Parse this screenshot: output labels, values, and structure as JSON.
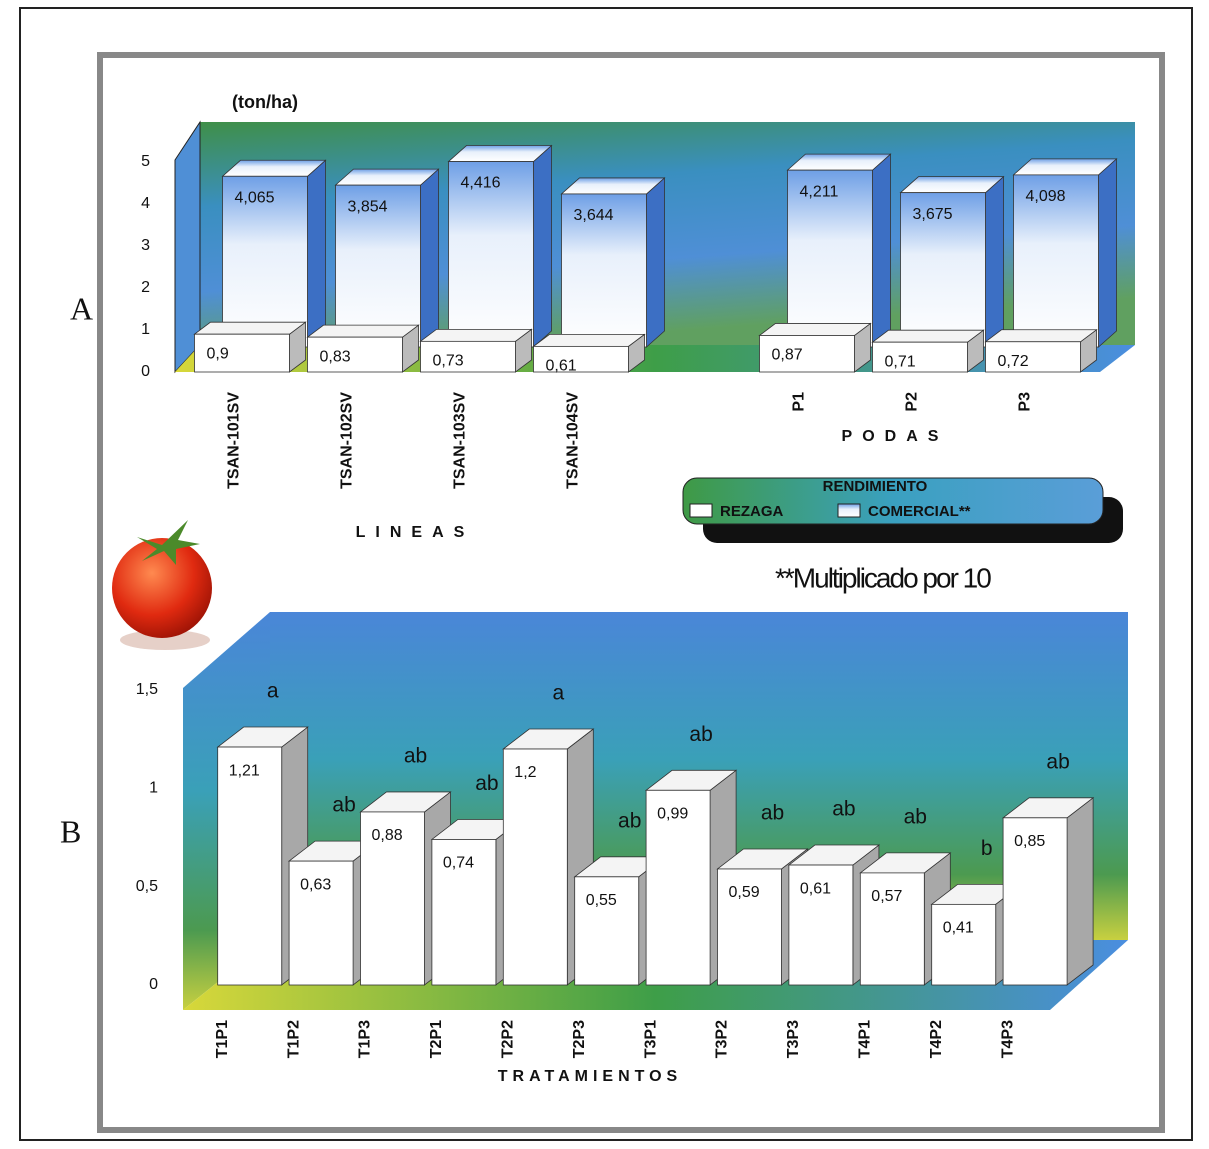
{
  "chart_data": [
    {
      "type": "bar3d",
      "panel": "A",
      "y_label": "(ton/ha)",
      "categories": [
        "TSAN-101SV",
        "TSAN-102SV",
        "TSAN-103SV",
        "TSAN-104SV",
        null,
        "P1",
        "P2",
        "P3"
      ],
      "x_labels": [
        "LINEAS",
        "PODAS"
      ],
      "legend_title": "RENDIMIENTO",
      "note": "**Multiplicado por 10",
      "series": [
        {
          "name": "REZAGA",
          "color": "#ffffff",
          "values": [
            0.9,
            0.83,
            0.73,
            0.61,
            null,
            0.87,
            0.71,
            0.72
          ],
          "value_labels": [
            "0,9",
            "0,83",
            "0,73",
            "0,61",
            null,
            "0,87",
            "0,71",
            "0,72"
          ]
        },
        {
          "name": "COMERCIAL**",
          "color": "#5d8fdc",
          "values": [
            4.065,
            3.854,
            4.416,
            3.644,
            null,
            4.211,
            3.675,
            4.098
          ],
          "value_labels": [
            "4,065",
            "3,854",
            "4,416",
            "3,644",
            null,
            "4,211",
            "3,675",
            "4,098"
          ]
        }
      ],
      "ylim": [
        0,
        5
      ],
      "yticks": [
        0,
        1,
        2,
        3,
        4,
        5
      ]
    },
    {
      "type": "bar3d",
      "panel": "B",
      "x_label": "TRATAMIENTOS",
      "categories": [
        "T1P1",
        "T1P2",
        "T1P3",
        "T2P1",
        "T2P2",
        "T2P3",
        "T3P1",
        "T3P2",
        "T3P3",
        "T4P1",
        "T4P2",
        "T4P3"
      ],
      "series": [
        {
          "color": "#ffffff",
          "values": [
            1.21,
            0.63,
            0.88,
            0.74,
            1.2,
            0.55,
            0.99,
            0.59,
            0.61,
            0.57,
            0.41,
            0.85
          ],
          "value_labels": [
            "1,21",
            "0,63",
            "0,88",
            "0,74",
            "1,2",
            "0,55",
            "0,99",
            "0,59",
            "0,61",
            "0,57",
            "0,41",
            "0,85"
          ],
          "letters": [
            "a",
            "ab",
            "ab",
            "ab",
            "a",
            "ab",
            "ab",
            "ab",
            "ab",
            "ab",
            "b",
            "ab"
          ]
        }
      ],
      "ylim": [
        0,
        1.5
      ],
      "yticks": [
        0,
        {
          "value": 0.5,
          "label": "0,5"
        },
        1,
        {
          "value": 1.5,
          "label": "1,5"
        }
      ]
    }
  ]
}
